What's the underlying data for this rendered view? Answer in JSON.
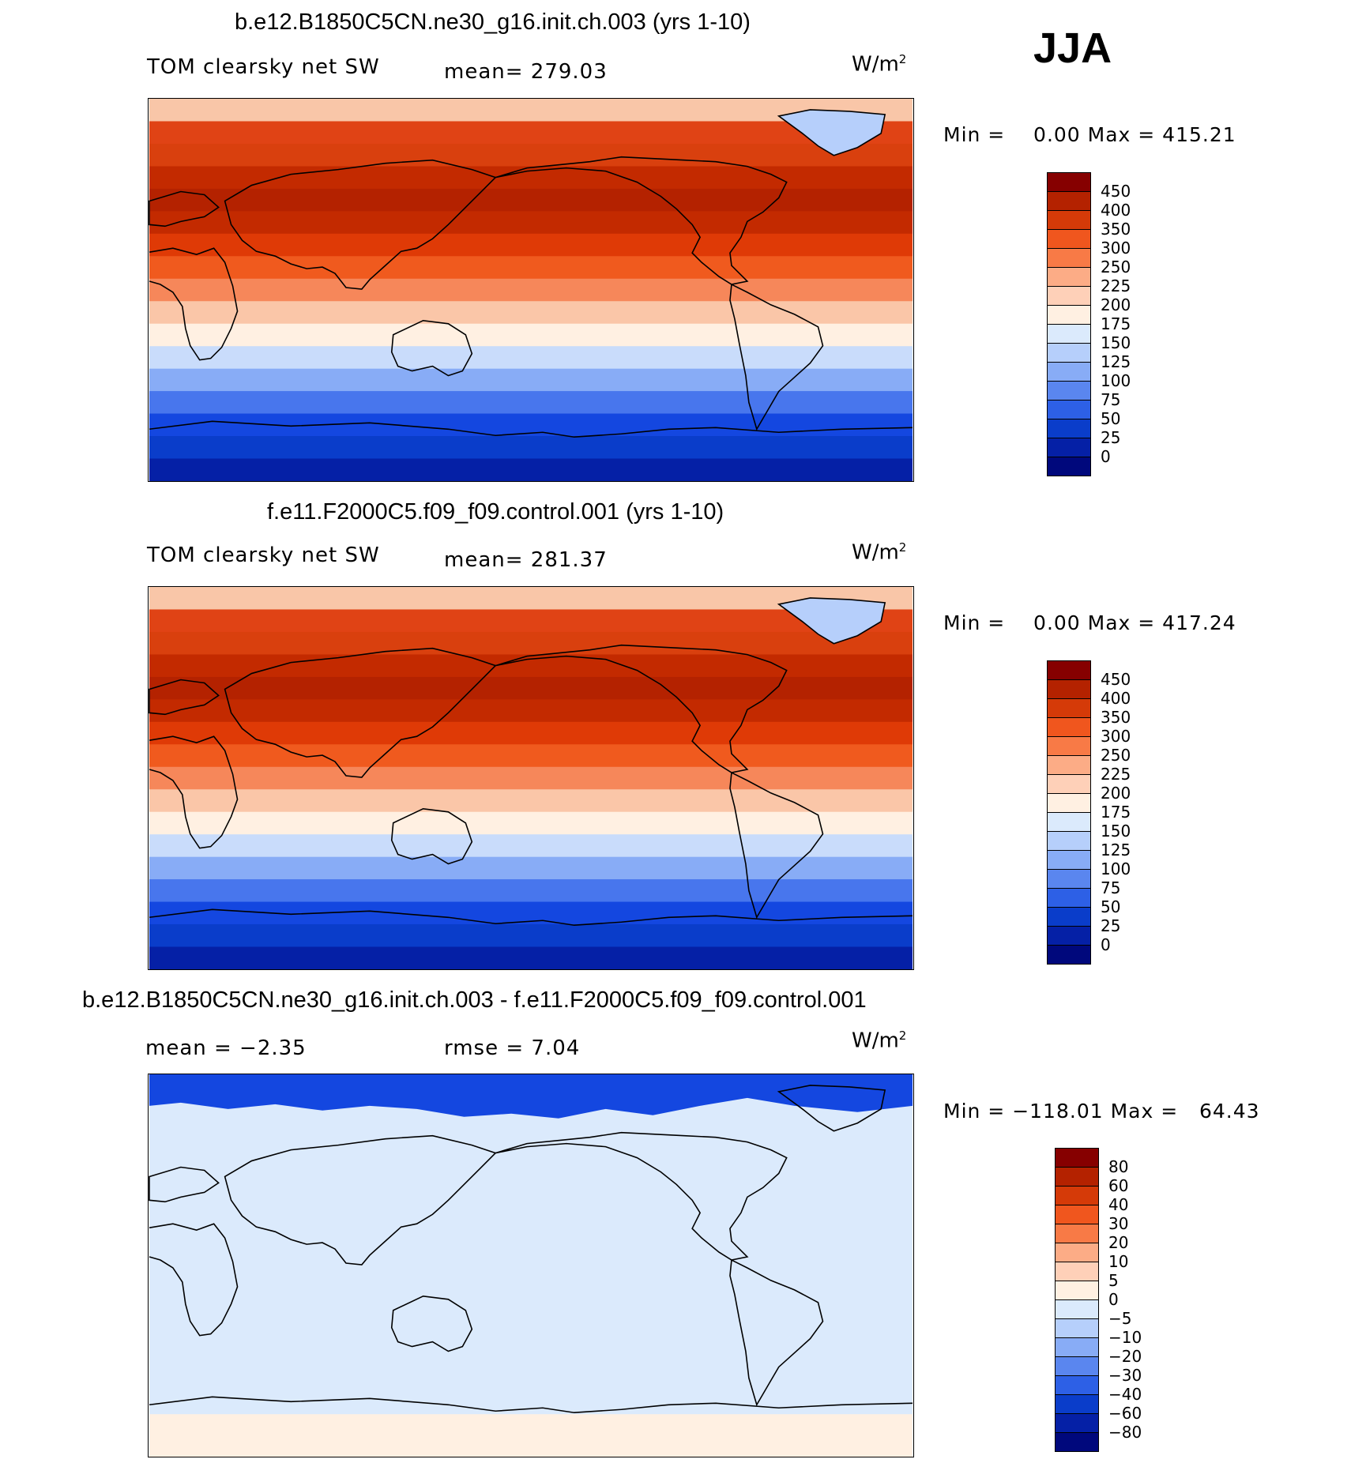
{
  "season": "JJA",
  "panels": [
    {
      "title": "b.e12.B1850C5CN.ne30_g16.init.ch.003 (yrs 1-10)",
      "left_label": "TOM clearsky net SW",
      "center_label": "mean= 279.03",
      "units": "W/m",
      "units_sup": "2",
      "minmax": "Min =    0.00 Max = 415.21",
      "colorbar": {
        "ticks": [
          "450",
          "400",
          "350",
          "300",
          "250",
          "225",
          "200",
          "175",
          "150",
          "125",
          "100",
          "75",
          "50",
          "25",
          "0"
        ],
        "colors": [
          "#860000",
          "#b42200",
          "#d53a08",
          "#f0561e",
          "#f87a46",
          "#fcac86",
          "#fed0b8",
          "#fff0e2",
          "#dbeafc",
          "#b6cffb",
          "#88acf6",
          "#5a86ef",
          "#2d60e6",
          "#0a3dca",
          "#0520a6",
          "#00087c"
        ]
      },
      "map": {
        "bands": [
          "#f9c6a8",
          "#e04315",
          "#d9400e",
          "#c32a00",
          "#b42200",
          "#c32a00",
          "#df3a06",
          "#f05a1e",
          "#f6875a",
          "#fac6a8",
          "#fff0e2",
          "#c9dcfb",
          "#88acf6",
          "#4876ed",
          "#1447e0",
          "#0a3dca",
          "#0520a6"
        ],
        "greenland_color": "#b6cffb"
      }
    },
    {
      "title": "f.e11.F2000C5.f09_f09.control.001 (yrs 1-10)",
      "left_label": "TOM clearsky net SW",
      "center_label": "mean= 281.37",
      "units": "W/m",
      "units_sup": "2",
      "minmax": "Min =    0.00 Max = 417.24",
      "colorbar": {
        "ticks": [
          "450",
          "400",
          "350",
          "300",
          "250",
          "225",
          "200",
          "175",
          "150",
          "125",
          "100",
          "75",
          "50",
          "25",
          "0"
        ],
        "colors": [
          "#860000",
          "#b42200",
          "#d53a08",
          "#f0561e",
          "#f87a46",
          "#fcac86",
          "#fed0b8",
          "#fff0e2",
          "#dbeafc",
          "#b6cffb",
          "#88acf6",
          "#5a86ef",
          "#2d60e6",
          "#0a3dca",
          "#0520a6",
          "#00087c"
        ]
      },
      "map": {
        "bands": [
          "#f9c6a8",
          "#e04315",
          "#d9400e",
          "#c32a00",
          "#b42200",
          "#c32a00",
          "#df3a06",
          "#f05a1e",
          "#f6875a",
          "#fac6a8",
          "#fff0e2",
          "#c9dcfb",
          "#88acf6",
          "#4876ed",
          "#1447e0",
          "#0a3dca",
          "#0520a6"
        ],
        "greenland_color": "#b6cffb"
      }
    },
    {
      "title": "b.e12.B1850C5CN.ne30_g16.init.ch.003 - f.e11.F2000C5.f09_f09.control.001",
      "left_label": "mean =   −2.35",
      "center_label": "rmse =    7.04",
      "units": "W/m",
      "units_sup": "2",
      "minmax": "Min = −118.01 Max =   64.43",
      "colorbar": {
        "ticks": [
          "80",
          "60",
          "40",
          "30",
          "20",
          "10",
          "5",
          "0",
          "−5",
          "−10",
          "−20",
          "−30",
          "−40",
          "−60",
          "−80"
        ],
        "colors": [
          "#860000",
          "#b42200",
          "#d53a08",
          "#f0561e",
          "#f87a46",
          "#fcac86",
          "#fed0b8",
          "#fff0e2",
          "#dbeafc",
          "#b6cffb",
          "#88acf6",
          "#5a86ef",
          "#2d60e6",
          "#0a3dca",
          "#0520a6",
          "#00087c"
        ]
      },
      "map": {
        "background": "#dbeafc",
        "north_band": "#1447e0",
        "south_band": "#fff0e2"
      }
    }
  ]
}
